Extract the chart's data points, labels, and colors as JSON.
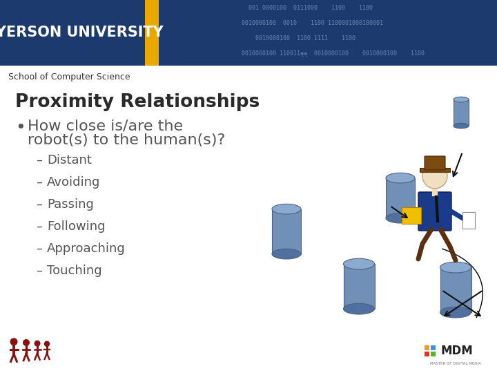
{
  "bg_color": "#ffffff",
  "header_bg": "#1c3a6e",
  "header_gold": "#e8a800",
  "header_text": "RYERSON UNIVERSITY",
  "subheader": "School of Computer Science",
  "title": "Proximity Relationships",
  "items": [
    "Distant",
    "Avoiding",
    "Passing",
    "Following",
    "Approaching",
    "Touching"
  ],
  "binary_lines": [
    "  001 0000100  0111000    1100    1100",
    "0010000100  0010    1100 1100001000100001",
    "    0010000100  1100 1111    1100",
    "0010000100 110011ąą  0010000100    0010000100    1100"
  ],
  "binary_color": "#7090b8",
  "cyl_fill": "#7090b8",
  "cyl_top": "#8aaad0",
  "cyl_bot": "#5070a0",
  "cyl_edge": "#506080",
  "text_color": "#555555",
  "title_color": "#2a2a2a",
  "person_body": "#1a3a8a",
  "person_head": "#f0e0c0",
  "person_hat": "#7a4a10",
  "person_bag": "#f0c000",
  "person_leg": "#5a3010",
  "person_tie": "#111111",
  "arrow_color": "#111111",
  "mdm_colors": [
    "#e8a020",
    "#4a90d0",
    "#e83020",
    "#60b030"
  ],
  "people_color": "#8b1010"
}
